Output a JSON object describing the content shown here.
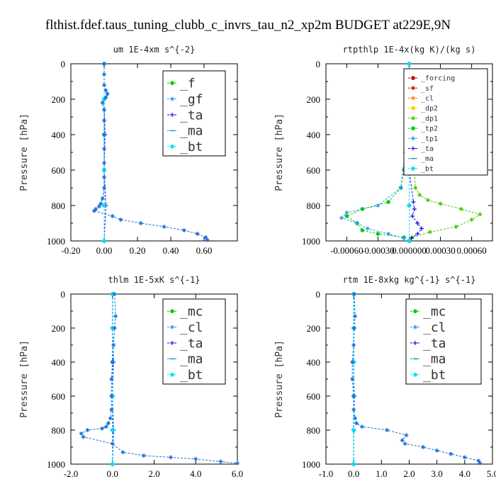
{
  "title": "flthist.fdef.taus_tuning_clubb_c_invrs_tau_n2_xp2m  BUDGET at229E,9N",
  "chart_data": [
    {
      "type": "line",
      "title": "um  1E-4xm s^{-2}",
      "ylabel": "Pressure [hPa]",
      "xlim": [
        -0.2,
        0.8
      ],
      "ylim": [
        1000,
        0
      ],
      "xticks": [
        -0.2,
        0.0,
        0.2,
        0.4,
        0.6
      ],
      "xtick_labels": [
        "-0.20",
        "0.00",
        "0.20",
        "0.40",
        "0.60"
      ],
      "yticks": [
        0,
        200,
        400,
        600,
        800,
        1000
      ],
      "ytick_labels": [
        "0",
        "200",
        "400",
        "600",
        "800",
        "1000"
      ],
      "legend_font": 18,
      "series": [
        {
          "name": "_f",
          "color": "#00cc00",
          "marker": "o",
          "x": [
            0.0,
            0.0,
            0.0,
            0.0,
            0.0,
            0.0
          ],
          "y": [
            0,
            200,
            400,
            600,
            800,
            1000
          ]
        },
        {
          "name": "_gf",
          "color": "#3399ff",
          "marker": "*",
          "x": [
            0.0,
            0.0,
            0.0,
            0.0,
            0.0,
            0.0
          ],
          "y": [
            0,
            200,
            400,
            600,
            800,
            1000
          ]
        },
        {
          "name": "_ta",
          "color": "#1111ee",
          "marker": "+",
          "x": [
            0.0,
            0.0,
            0.005,
            0.0,
            0.01,
            0.0
          ],
          "y": [
            0,
            200,
            400,
            600,
            800,
            1000
          ]
        },
        {
          "name": "_ma",
          "color": "#00a0c0",
          "marker": "-",
          "x": [
            0.0,
            0.0,
            0.0,
            0.0,
            0.0,
            0.0
          ],
          "y": [
            0,
            200,
            400,
            600,
            800,
            1000
          ]
        },
        {
          "name": "_bt",
          "color": "#00e0ff",
          "marker": "o",
          "x": [
            0.0,
            0.0,
            0.0,
            0.0,
            0.0,
            0.0
          ],
          "y": [
            0,
            200,
            400,
            600,
            800,
            1000
          ]
        },
        {
          "name": "",
          "color": "#1a6fd6",
          "marker": "*",
          "x": [
            0.0,
            0.0,
            0.0,
            0.01,
            0.02,
            0.01,
            -0.01,
            0.0,
            0.0,
            0.0,
            0.0,
            0.0,
            0.0,
            0.0,
            -0.01,
            -0.02,
            -0.03,
            -0.05,
            -0.06,
            0.05,
            0.1,
            0.22,
            0.36,
            0.48,
            0.56,
            0.61,
            0.62
          ],
          "y": [
            0,
            60,
            120,
            150,
            170,
            190,
            220,
            260,
            320,
            400,
            480,
            560,
            640,
            700,
            760,
            790,
            805,
            820,
            830,
            860,
            880,
            900,
            920,
            940,
            960,
            980,
            995
          ]
        }
      ]
    },
    {
      "type": "line",
      "title": "rtpthlp  1E-4x(kg K)/(kg s)",
      "ylabel": "Pressure [hPa]",
      "xlim": [
        -0.0008,
        0.0008
      ],
      "ylim": [
        1000,
        0
      ],
      "xticks": [
        -0.0006,
        -0.0003,
        0.0,
        0.0003,
        0.0006
      ],
      "xtick_labels": [
        "-0.00060",
        "-0.00030",
        "0.000000",
        "0.00030",
        "0.00060"
      ],
      "yticks": [
        0,
        200,
        400,
        600,
        800,
        1000
      ],
      "ytick_labels": [
        "0",
        "200",
        "400",
        "600",
        "800",
        "1000"
      ],
      "legend_font": 10,
      "series": [
        {
          "name": "_forcing",
          "color": "#cc0000",
          "marker": "o",
          "x": [
            0,
            0,
            0,
            0,
            0,
            0
          ],
          "y": [
            0,
            200,
            400,
            600,
            800,
            1000
          ]
        },
        {
          "name": "_sf",
          "color": "#dd0000",
          "marker": "*",
          "x": [
            0,
            0,
            0,
            0,
            0,
            0
          ],
          "y": [
            0,
            200,
            400,
            600,
            800,
            1000
          ]
        },
        {
          "name": "_cl",
          "color": "#ff8800",
          "marker": "*",
          "x": [],
          "y": []
        },
        {
          "name": "_dp2",
          "color": "#ffcc00",
          "marker": "o",
          "x": [],
          "y": []
        },
        {
          "name": "_dp1",
          "color": "#44cc00",
          "marker": "*",
          "x": [
            0.0,
            1e-05,
            2e-05,
            3e-05,
            4e-05,
            5e-05,
            6e-05,
            0.0001,
            0.00018,
            0.0003,
            0.0005,
            0.00068,
            0.0006,
            0.00045,
            0.0002,
            3e-05
          ],
          "y": [
            0,
            200,
            300,
            400,
            500,
            600,
            700,
            740,
            770,
            790,
            820,
            850,
            880,
            920,
            950,
            980
          ]
        },
        {
          "name": "_tp2",
          "color": "#00cc00",
          "marker": "o",
          "x": [
            0.0,
            -1e-05,
            -2e-05,
            -3e-05,
            -4e-05,
            -5e-05,
            -8e-05,
            -0.0002,
            -0.00045,
            -0.0006,
            -0.0005,
            -0.00045,
            -0.0003,
            -5e-05
          ],
          "y": [
            0,
            200,
            300,
            400,
            500,
            600,
            700,
            780,
            820,
            860,
            900,
            940,
            960,
            980
          ]
        },
        {
          "name": "_tp1",
          "color": "#3399ff",
          "marker": "*",
          "x": [
            0.0,
            -2e-05,
            -8e-05,
            -0.0003,
            -0.0006,
            -0.00065,
            -0.0005,
            -0.0004,
            -0.0002,
            -5e-05
          ],
          "y": [
            0,
            400,
            700,
            800,
            840,
            870,
            900,
            930,
            960,
            985
          ]
        },
        {
          "name": "_ta",
          "color": "#1111ee",
          "marker": "+",
          "x": [
            0.0,
            0.0,
            4e-05,
            5e-05,
            3e-05,
            8e-05,
            0.00012,
            8e-05,
            2e-05
          ],
          "y": [
            0,
            600,
            780,
            820,
            860,
            900,
            930,
            960,
            985
          ]
        },
        {
          "name": "_ma",
          "color": "#00a0c0",
          "marker": "-",
          "x": [
            0,
            0,
            0,
            0,
            0,
            0
          ],
          "y": [
            0,
            200,
            400,
            600,
            800,
            1000
          ]
        },
        {
          "name": "_bt",
          "color": "#00e0ff",
          "marker": "o",
          "x": [
            0,
            0,
            0,
            0,
            0,
            0
          ],
          "y": [
            0,
            200,
            400,
            600,
            800,
            1000
          ]
        }
      ]
    },
    {
      "type": "line",
      "title": "thlm  1E-5xK s^{-1}",
      "ylabel": "Pressure [hPa]",
      "xlim": [
        -2.0,
        6.0
      ],
      "ylim": [
        1000,
        0
      ],
      "xticks": [
        -2,
        0,
        2,
        4,
        6
      ],
      "xtick_labels": [
        "-2.0",
        "0.0",
        "2.0",
        "4.0",
        "6.0"
      ],
      "yticks": [
        0,
        200,
        400,
        600,
        800,
        1000
      ],
      "ytick_labels": [
        "0",
        "200",
        "400",
        "600",
        "800",
        "1000"
      ],
      "legend_font": 18,
      "series": [
        {
          "name": "_mc",
          "color": "#00cc00",
          "marker": "o",
          "x": [
            0,
            0,
            0,
            0,
            0,
            0
          ],
          "y": [
            0,
            200,
            400,
            600,
            800,
            1000
          ]
        },
        {
          "name": "_cl",
          "color": "#3399ff",
          "marker": "*",
          "x": [
            0,
            0,
            0,
            0,
            0,
            0
          ],
          "y": [
            0,
            200,
            400,
            600,
            800,
            1000
          ]
        },
        {
          "name": "_ta",
          "color": "#1111ee",
          "marker": "+",
          "x": [
            0,
            0,
            0.05,
            0,
            0.05,
            0
          ],
          "y": [
            0,
            200,
            400,
            600,
            800,
            1000
          ]
        },
        {
          "name": "_ma",
          "color": "#00a0c0",
          "marker": "-",
          "x": [
            0,
            0,
            0,
            0,
            0,
            0
          ],
          "y": [
            0,
            200,
            400,
            600,
            800,
            1000
          ]
        },
        {
          "name": "_bt",
          "color": "#00e0ff",
          "marker": "o",
          "x": [
            0,
            0,
            0,
            0,
            0,
            0
          ],
          "y": [
            0,
            200,
            400,
            600,
            800,
            1000
          ]
        },
        {
          "name": "",
          "color": "#1a6fd6",
          "marker": "*",
          "x": [
            0.1,
            0.15,
            0.1,
            0.05,
            0.0,
            -0.05,
            -0.05,
            -0.05,
            -0.1,
            -0.2,
            -0.3,
            -0.5,
            -1.2,
            -1.5,
            -1.4,
            0.0,
            0.5,
            1.5,
            2.8,
            4.0,
            5.2,
            6.0
          ],
          "y": [
            0,
            130,
            200,
            300,
            400,
            500,
            600,
            680,
            730,
            760,
            780,
            790,
            800,
            820,
            840,
            880,
            930,
            950,
            960,
            970,
            985,
            995
          ]
        }
      ]
    },
    {
      "type": "line",
      "title": "rtm  1E-8xkg kg^{-1} s^{-1}",
      "ylabel": "Pressure [hPa]",
      "xlim": [
        -1.0,
        5.0
      ],
      "ylim": [
        1000,
        0
      ],
      "xticks": [
        -1,
        0,
        1,
        2,
        3,
        4,
        5
      ],
      "xtick_labels": [
        "-1.0",
        "0.0",
        "1.0",
        "2.0",
        "3.0",
        "4.0",
        "5.0"
      ],
      "yticks": [
        0,
        200,
        400,
        600,
        800,
        1000
      ],
      "ytick_labels": [
        "0",
        "200",
        "400",
        "600",
        "800",
        "1000"
      ],
      "legend_font": 18,
      "series": [
        {
          "name": "_mc",
          "color": "#00cc00",
          "marker": "o",
          "x": [
            0,
            0,
            0,
            0,
            0,
            0
          ],
          "y": [
            0,
            200,
            400,
            600,
            800,
            1000
          ]
        },
        {
          "name": "_cl",
          "color": "#3399ff",
          "marker": "*",
          "x": [
            0,
            0,
            0,
            0,
            0,
            0
          ],
          "y": [
            0,
            200,
            400,
            600,
            800,
            1000
          ]
        },
        {
          "name": "_ta",
          "color": "#1111ee",
          "marker": "+",
          "x": [
            0,
            0,
            0,
            0.02,
            0,
            0
          ],
          "y": [
            0,
            200,
            400,
            600,
            800,
            1000
          ]
        },
        {
          "name": "_ma",
          "color": "#00a0c0",
          "marker": "-",
          "x": [
            0,
            0,
            0,
            0,
            0,
            0
          ],
          "y": [
            0,
            200,
            400,
            600,
            800,
            1000
          ]
        },
        {
          "name": "_bt",
          "color": "#00e0ff",
          "marker": "o",
          "x": [
            0,
            0,
            0,
            0,
            0,
            0
          ],
          "y": [
            0,
            200,
            400,
            600,
            800,
            1000
          ]
        },
        {
          "name": "",
          "color": "#1a6fd6",
          "marker": "*",
          "x": [
            0.02,
            0.05,
            0.02,
            0.0,
            -0.05,
            -0.05,
            0.0,
            0.0,
            0.05,
            0.1,
            0.3,
            1.2,
            1.9,
            1.75,
            1.85,
            2.5,
            3.0,
            3.5,
            4.0,
            4.5,
            4.55
          ],
          "y": [
            0,
            130,
            200,
            300,
            400,
            500,
            600,
            680,
            730,
            760,
            780,
            800,
            830,
            860,
            880,
            900,
            920,
            940,
            960,
            980,
            995
          ]
        }
      ]
    }
  ]
}
